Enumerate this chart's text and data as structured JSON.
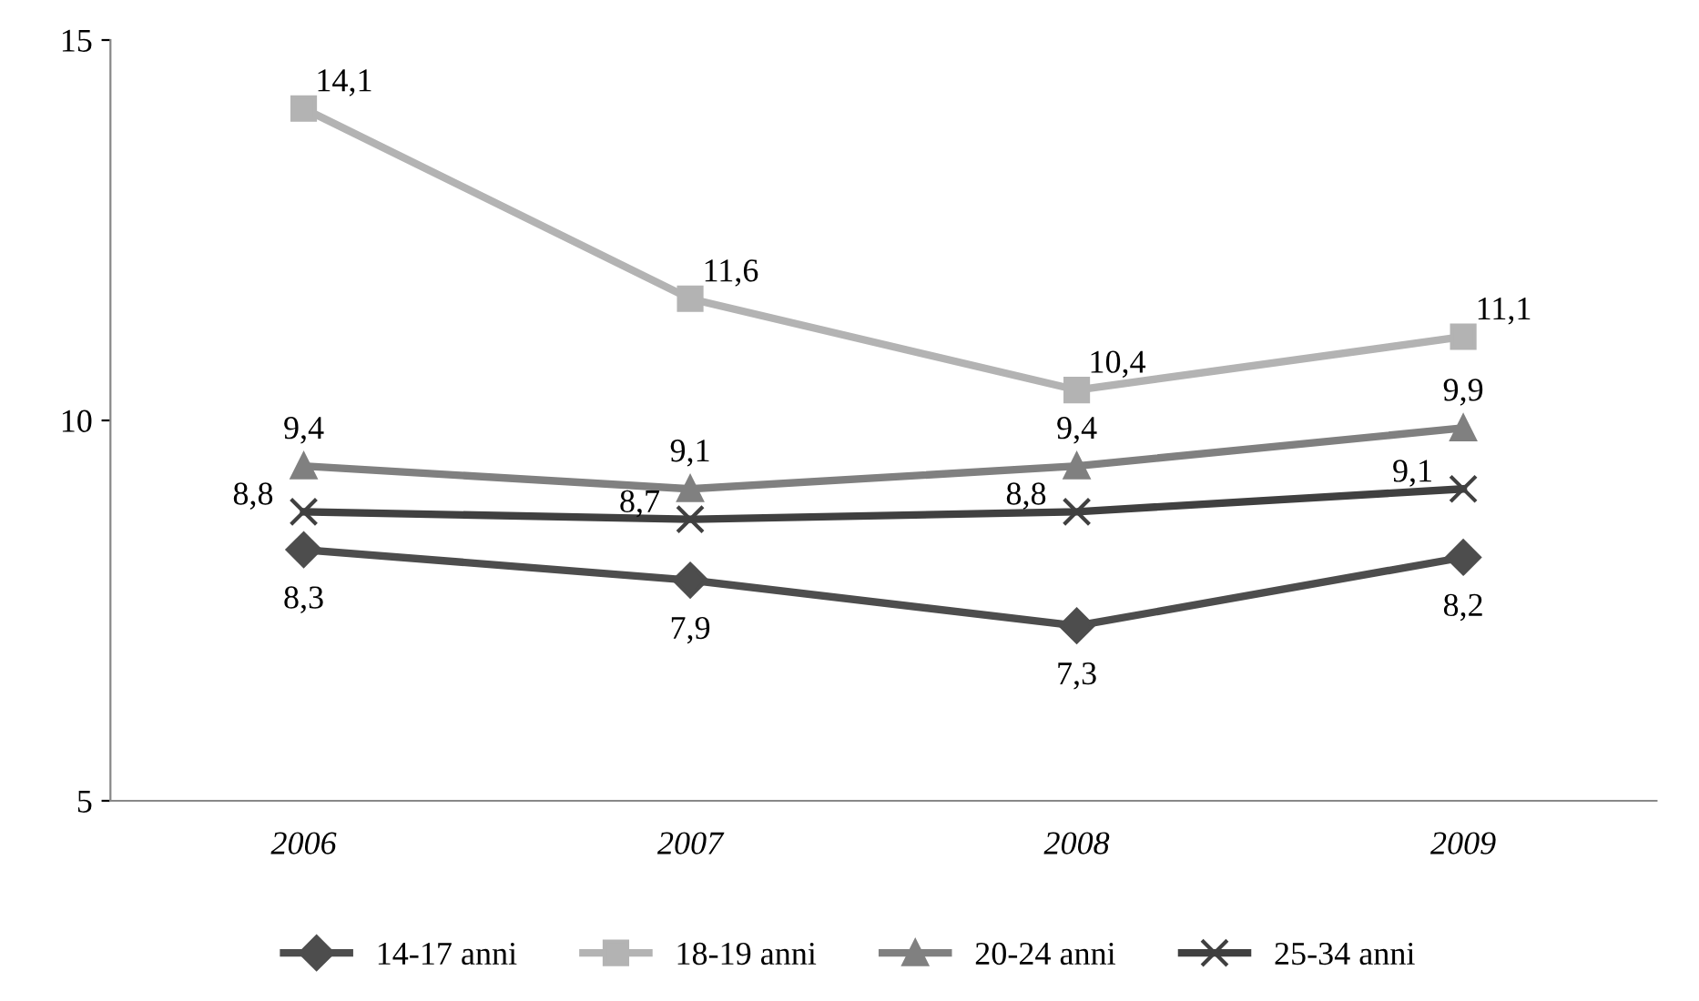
{
  "chart_data": {
    "type": "line",
    "categories": [
      "2006",
      "2007",
      "2008",
      "2009"
    ],
    "series": [
      {
        "name": "14-17 anni",
        "color": "#4d4d4d",
        "marker": "diamond",
        "values": [
          8.3,
          7.9,
          7.3,
          8.2
        ],
        "value_labels": [
          "8,3",
          "7,9",
          "7,3",
          "8,2"
        ]
      },
      {
        "name": "18-19 anni",
        "color": "#b3b3b3",
        "marker": "square",
        "values": [
          14.1,
          11.6,
          10.4,
          11.1
        ],
        "value_labels": [
          "14,1",
          "11,6",
          "10,4",
          "11,1"
        ]
      },
      {
        "name": "20-24 anni",
        "color": "#808080",
        "marker": "triangle",
        "values": [
          9.4,
          9.1,
          9.4,
          9.9
        ],
        "value_labels": [
          "9,4",
          "9,1",
          "9,4",
          "9,9"
        ]
      },
      {
        "name": "25-34 anni",
        "color": "#404040",
        "marker": "cross",
        "values": [
          8.8,
          8.7,
          8.8,
          9.1
        ],
        "value_labels": [
          "8,8",
          "8,7",
          "8,8",
          "9,1"
        ]
      }
    ],
    "ylim": [
      5,
      15
    ],
    "yticks": [
      5,
      10,
      15
    ],
    "grid": false,
    "legend": "bottom",
    "line_style": "solid"
  }
}
